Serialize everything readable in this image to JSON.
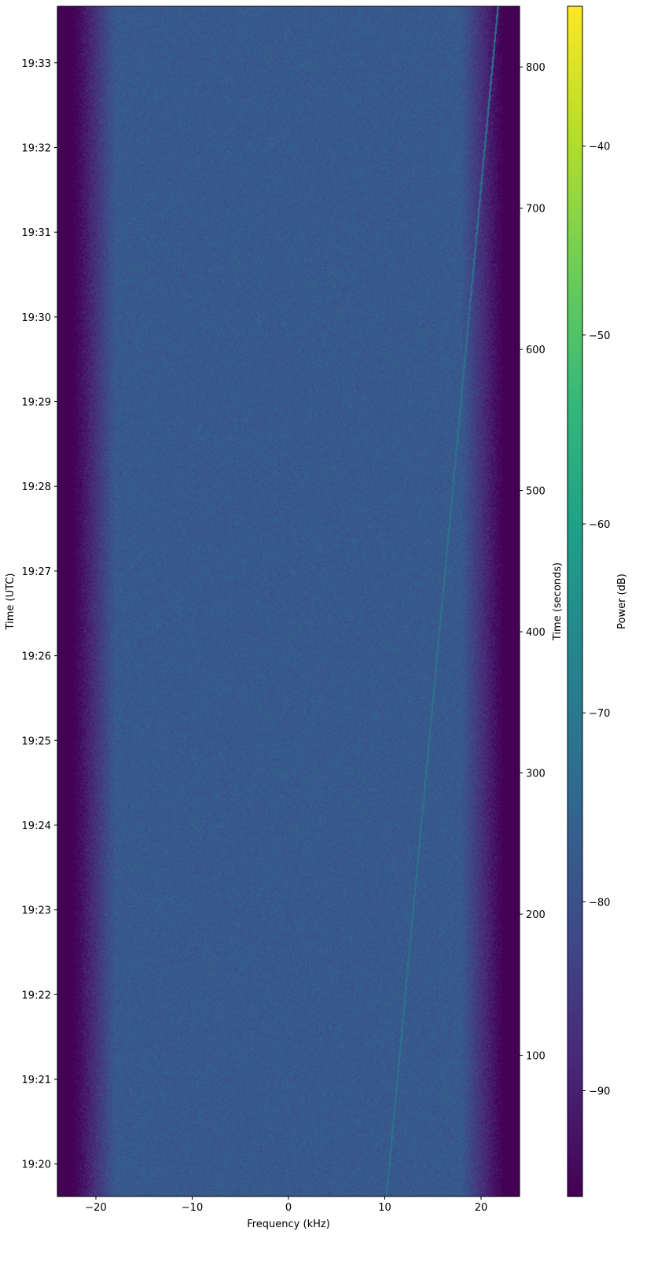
{
  "chart_data": {
    "type": "heatmap",
    "subtype": "spectrogram",
    "title": "",
    "xlabel": "Frequency (kHz)",
    "ylabel_left": "Time (UTC)",
    "ylabel_right": "Time (seconds)",
    "colorbar_label": "Power (dB)",
    "colormap": "viridis",
    "xlim": [
      -24,
      24
    ],
    "ylim_seconds": [
      0,
      843
    ],
    "clim": [
      -95.6,
      -32.6
    ],
    "x_ticks": [
      -20,
      -10,
      0,
      10,
      20
    ],
    "x_tick_labels": [
      "−20",
      "−10",
      "0",
      "10",
      "20"
    ],
    "y_right_ticks": [
      100,
      200,
      300,
      400,
      500,
      600,
      700,
      800
    ],
    "y_right_tick_labels": [
      "100",
      "200",
      "300",
      "400",
      "500",
      "600",
      "700",
      "800"
    ],
    "y_left_ticks_seconds": [
      23,
      83,
      143,
      203,
      263,
      323,
      383,
      443,
      503,
      563,
      623,
      683,
      743,
      803
    ],
    "y_left_tick_labels": [
      "19:20",
      "19:21",
      "19:22",
      "19:23",
      "19:24",
      "19:25",
      "19:26",
      "19:27",
      "19:28",
      "19:29",
      "19:30",
      "19:31",
      "19:32",
      "19:33"
    ],
    "colorbar_ticks": [
      -40,
      -50,
      -60,
      -70,
      -80,
      -90
    ],
    "colorbar_tick_labels": [
      "−40",
      "−50",
      "−60",
      "−70",
      "−80",
      "−90"
    ],
    "noise_floor_db": -78,
    "band_edges_khz": [
      -22,
      22
    ],
    "drifting_signal": {
      "start": {
        "t": 0,
        "f_khz": 10.2
      },
      "end": {
        "t": 843,
        "f_khz": 21.8
      },
      "power_db": -72
    },
    "grid": false
  }
}
